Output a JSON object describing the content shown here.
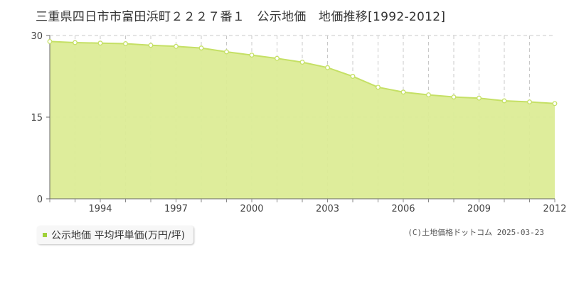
{
  "title": "三重県四日市市富田浜町２２２７番１　公示地価　地価推移[1992-2012]",
  "legend": {
    "label": "公示地価 平均坪単価(万円/坪)"
  },
  "credit": "(C)土地価格ドットコム 2025-03-23",
  "colors": {
    "fill": "#dcec96",
    "line": "#c5e065",
    "marker_fill": "#ffffff",
    "legend_marker": "#9fd13a"
  },
  "chart_data": {
    "type": "area",
    "title": "",
    "xlabel": "",
    "ylabel": "",
    "x": [
      1992,
      1993,
      1994,
      1995,
      1996,
      1997,
      1998,
      1999,
      2000,
      2001,
      2002,
      2003,
      2004,
      2005,
      2006,
      2007,
      2008,
      2009,
      2010,
      2011,
      2012
    ],
    "series": [
      {
        "name": "公示地価 平均坪単価(万円/坪)",
        "values": [
          28.9,
          28.7,
          28.6,
          28.5,
          28.2,
          28.0,
          27.7,
          27.0,
          26.4,
          25.8,
          25.1,
          24.1,
          22.5,
          20.5,
          19.6,
          19.1,
          18.7,
          18.5,
          18.0,
          17.8,
          17.5
        ]
      }
    ],
    "xlim": [
      1992,
      2012
    ],
    "ylim": [
      0,
      30
    ],
    "yticks": [
      0,
      15,
      30
    ],
    "xticks": [
      1994,
      1997,
      2000,
      2003,
      2006,
      2009,
      2012
    ],
    "grid": true
  }
}
